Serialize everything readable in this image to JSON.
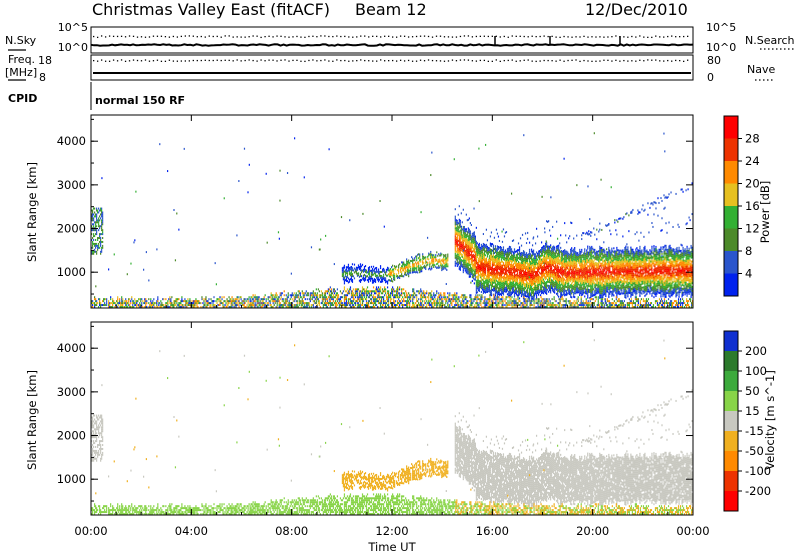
{
  "header": {
    "station": "Christmas Valley East (fitACF)",
    "beam": "Beam 12",
    "date": "12/Dec/2010"
  },
  "noise_panel": {
    "left_label": "N.Sky",
    "right_label": "N.Search",
    "left_ticks": [
      "10^5",
      "10^0"
    ],
    "right_ticks": [
      "10^5",
      "10^0"
    ]
  },
  "freq_panel": {
    "left_label": "Freq.",
    "left_unit": "[MHz]",
    "right_label": "Nave",
    "left_ticks": [
      "18",
      "8"
    ],
    "right_ticks": [
      "80",
      "0"
    ]
  },
  "cpid": {
    "label": "CPID",
    "program": "normal 150 RF"
  },
  "chart_data": [
    {
      "type": "heatmap",
      "panel": "power",
      "ylabel": "Slant Range [km]",
      "xlabel": "Time UT",
      "x_ticks": [
        "00:00",
        "04:00",
        "08:00",
        "12:00",
        "16:00",
        "20:00",
        "00:00"
      ],
      "y_ticks": [
        1000,
        2000,
        3000,
        4000
      ],
      "xlim_hours": [
        0,
        24
      ],
      "ylim_km": [
        180,
        4600
      ],
      "colorbar": {
        "label": "Power [dB]",
        "ticks": [
          4,
          8,
          12,
          16,
          20,
          24,
          28
        ],
        "range": [
          0,
          30
        ],
        "colors": [
          "#0022ee",
          "#2a55cc",
          "#4c8a2a",
          "#33b033",
          "#e6c020",
          "#ff8a00",
          "#ee3300",
          "#ff0000"
        ]
      },
      "features": [
        {
          "name": "main band",
          "start_h": 14.5,
          "end_h": 24,
          "range_km": [
            800,
            1700
          ],
          "peak_db": 28
        },
        {
          "name": "afternoon patch",
          "start_h": 12,
          "end_h": 14.2,
          "range_km": [
            850,
            1200
          ],
          "peak_db": 22
        },
        {
          "name": "near-range clutter",
          "start_h": 0,
          "end_h": 24,
          "range_km": [
            180,
            450
          ],
          "peak_db": 24
        },
        {
          "name": "early scatter",
          "start_h": 0,
          "end_h": 0.4,
          "range_km": [
            1400,
            2400
          ],
          "peak_db": 12
        }
      ]
    },
    {
      "type": "heatmap",
      "panel": "velocity",
      "ylabel": "Slant Range [km]",
      "xlabel": "Time UT",
      "x_ticks": [
        "00:00",
        "04:00",
        "08:00",
        "12:00",
        "16:00",
        "20:00",
        "00:00"
      ],
      "y_ticks": [
        1000,
        2000,
        3000,
        4000
      ],
      "xlim_hours": [
        0,
        24
      ],
      "ylim_km": [
        180,
        4600
      ],
      "colorbar": {
        "label": "Velocity [m s^-1]",
        "ticks": [
          200,
          100,
          50,
          15,
          -15,
          -50,
          -100,
          -200
        ],
        "colors": [
          "#1030d0",
          "#2c7a2c",
          "#3caa3c",
          "#88d448",
          "#c8c8c0",
          "#f0b020",
          "#ff8a00",
          "#ee3300",
          "#ff0000"
        ]
      },
      "features": [
        {
          "name": "ground scatter band",
          "start_h": 14.5,
          "end_h": 24,
          "range_km": [
            800,
            1900
          ],
          "velocity": 0
        },
        {
          "name": "afternoon patch",
          "start_h": 10,
          "end_h": 14.2,
          "range_km": [
            750,
            1200
          ],
          "velocity": -40
        },
        {
          "name": "near-range green",
          "start_h": 3,
          "end_h": 14,
          "range_km": [
            180,
            600
          ],
          "velocity": 30
        }
      ]
    }
  ]
}
